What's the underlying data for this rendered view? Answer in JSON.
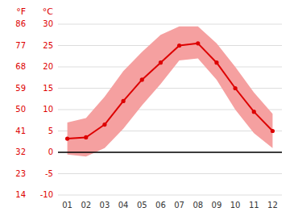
{
  "chart_data": {
    "type": "line",
    "categories": [
      "01",
      "02",
      "03",
      "04",
      "05",
      "06",
      "07",
      "08",
      "09",
      "10",
      "11",
      "12"
    ],
    "series": [
      {
        "type": "band",
        "color": "#f5a0a0",
        "low": [
          -0.5,
          -1.0,
          1.0,
          5.5,
          11.0,
          16.0,
          21.5,
          22.0,
          17.0,
          10.0,
          4.5,
          1.0
        ],
        "high": [
          7.0,
          8.0,
          13.0,
          19.0,
          23.5,
          27.5,
          29.5,
          29.5,
          25.5,
          20.0,
          14.0,
          9.0
        ]
      },
      {
        "type": "line",
        "color": "#dd0000",
        "marker": "circle",
        "values": [
          3.2,
          3.5,
          6.5,
          12.0,
          17.0,
          21.0,
          25.0,
          25.5,
          21.0,
          15.0,
          9.5,
          5.0
        ]
      }
    ],
    "y_label": "°C",
    "ylim": [
      -10,
      30
    ],
    "yticks": [
      -10,
      -5,
      0,
      5,
      10,
      15,
      20,
      25,
      30
    ],
    "y2_label": "°F",
    "y2lim": [
      14,
      86
    ],
    "y2ticks": [
      14,
      23,
      32,
      41,
      50,
      59,
      68,
      77,
      86
    ],
    "zero_line": 0,
    "grid": true
  }
}
